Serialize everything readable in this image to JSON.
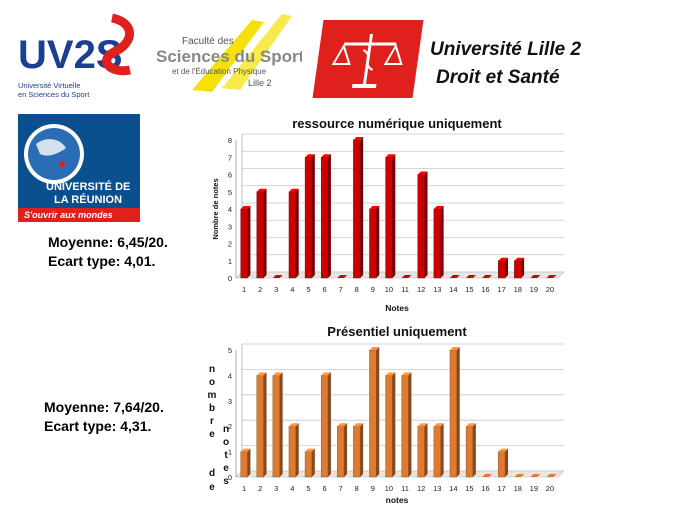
{
  "logos": {
    "uv2s": {
      "name": "UV2S",
      "line1": "Université Virtuelle",
      "line2": "en Sciences du Sport"
    },
    "fss": {
      "line1": "Faculté des",
      "line2": "Sciences du Sport",
      "line3": "et de l'Éducation Physique",
      "line4": "Lille 2"
    },
    "lille": {
      "line1": "Université Lille 2",
      "line2": "Droit et Santé"
    },
    "reunion": {
      "line1": "UNIVERSITÉ DE",
      "line2": "LA RÉUNION",
      "tagline": "S'ouvrir aux mondes"
    }
  },
  "stats_top": {
    "moyenne": "Moyenne: 6,45/20.",
    "ecart": "Ecart type: 4,01."
  },
  "stats_bottom": {
    "moyenne": "Moyenne: 7,64/20.",
    "ecart": "Ecart type: 4,31."
  },
  "colors": {
    "bar_top": "#cc0000",
    "bar_bottom": "#e07a30"
  },
  "chart_data": [
    {
      "type": "bar",
      "title": "ressource numérique uniquement",
      "xlabel": "Notes",
      "ylabel": "Nombre de notes",
      "categories": [
        "1",
        "2",
        "3",
        "4",
        "5",
        "6",
        "7",
        "8",
        "9",
        "10",
        "11",
        "12",
        "13",
        "14",
        "15",
        "16",
        "17",
        "18",
        "19",
        "20"
      ],
      "values": [
        4,
        5,
        0,
        5,
        7,
        7,
        0,
        8,
        4,
        7,
        0,
        6,
        4,
        0,
        0,
        0,
        1,
        1,
        0,
        0
      ],
      "ylim": [
        0,
        8
      ],
      "yticks": [
        "0",
        "1",
        "2",
        "3",
        "4",
        "5",
        "6",
        "7",
        "8"
      ],
      "grid": true
    },
    {
      "type": "bar",
      "title": "Présentiel uniquement",
      "xlabel": "notes",
      "ylabel": "nombre de notes",
      "ylabel_chars": [
        "n",
        "o",
        "m",
        "b",
        "r",
        "e",
        "d",
        "e",
        "n",
        "o",
        "t",
        "e",
        "s"
      ],
      "categories": [
        "1",
        "2",
        "3",
        "4",
        "5",
        "6",
        "7",
        "8",
        "9",
        "10",
        "11",
        "12",
        "13",
        "14",
        "15",
        "16",
        "17",
        "18",
        "19",
        "20"
      ],
      "values": [
        1,
        4,
        4,
        2,
        1,
        4,
        2,
        2,
        5,
        4,
        4,
        2,
        2,
        5,
        2,
        0,
        1,
        0,
        0,
        0
      ],
      "ylim": [
        0,
        5
      ],
      "yticks": [
        "0",
        "1",
        "2",
        "3",
        "4",
        "5"
      ],
      "grid": true
    }
  ]
}
